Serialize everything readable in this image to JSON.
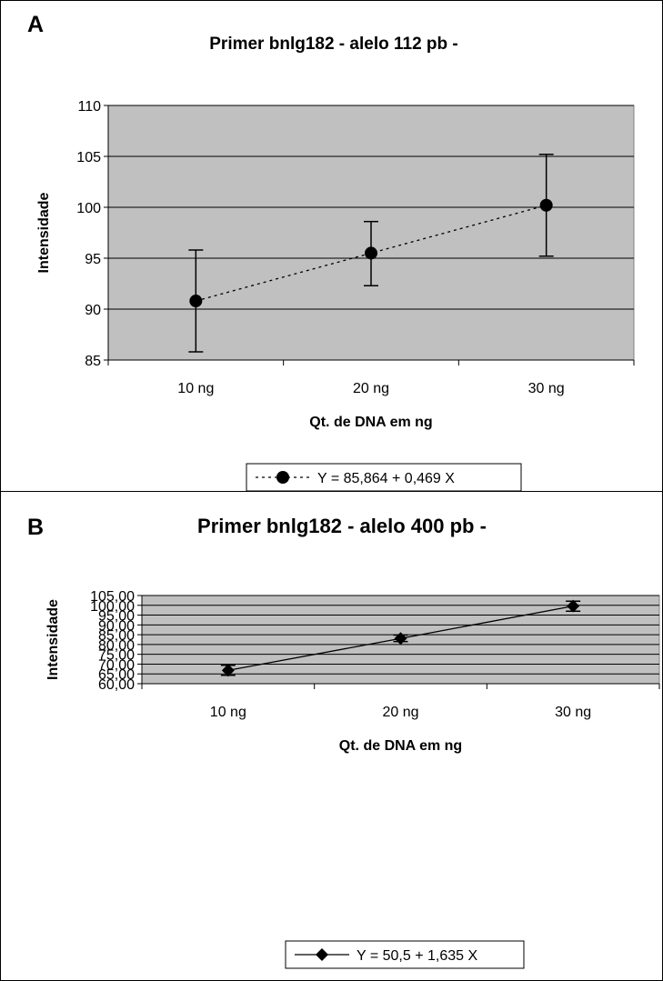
{
  "chart_data": [
    {
      "type": "line",
      "panel_label": "A",
      "title": "Primer bnlg182 - alelo 112 pb -",
      "xlabel": "Qt. de DNA em ng",
      "ylabel": "Intensidade",
      "categories": [
        "10 ng",
        "20 ng",
        "30 ng"
      ],
      "y_ticks": [
        "85",
        "90",
        "95",
        "100",
        "105",
        "110"
      ],
      "ylim": [
        85,
        110
      ],
      "y_step": 5,
      "grid": true,
      "line_style": "dotted",
      "marker": "circle",
      "legend_position": "bottom",
      "series": [
        {
          "name": "Y = 85,864 + 0,469 X",
          "values": [
            90.8,
            95.5,
            100.2
          ],
          "error_low": [
            85.8,
            92.3,
            95.2
          ],
          "error_high": [
            95.8,
            98.6,
            105.2
          ]
        }
      ]
    },
    {
      "type": "line",
      "panel_label": "B",
      "title": "Primer bnlg182 - alelo 400 pb -",
      "xlabel": "Qt. de DNA em ng",
      "ylabel": "Intensidade",
      "categories": [
        "10 ng",
        "20 ng",
        "30 ng"
      ],
      "y_ticks": [
        "60,00",
        "65,00",
        "70,00",
        "75,00",
        "80,00",
        "85,00",
        "90,00",
        "95,00",
        "100,00",
        "105,00"
      ],
      "ylim": [
        60,
        105
      ],
      "y_step": 5,
      "grid": true,
      "line_style": "solid",
      "marker": "diamond",
      "legend_position": "bottom",
      "series": [
        {
          "name": "Y = 50,5 + 1,635 X",
          "values": [
            66.8,
            83.1,
            99.6
          ],
          "error_low": [
            64.3,
            81.5,
            97.0
          ],
          "error_high": [
            69.4,
            84.8,
            102.1
          ]
        }
      ]
    }
  ],
  "colors": {
    "plot_background": "#c0c0c0",
    "grid": "#000000",
    "line": "#000000",
    "marker": "#000000"
  }
}
